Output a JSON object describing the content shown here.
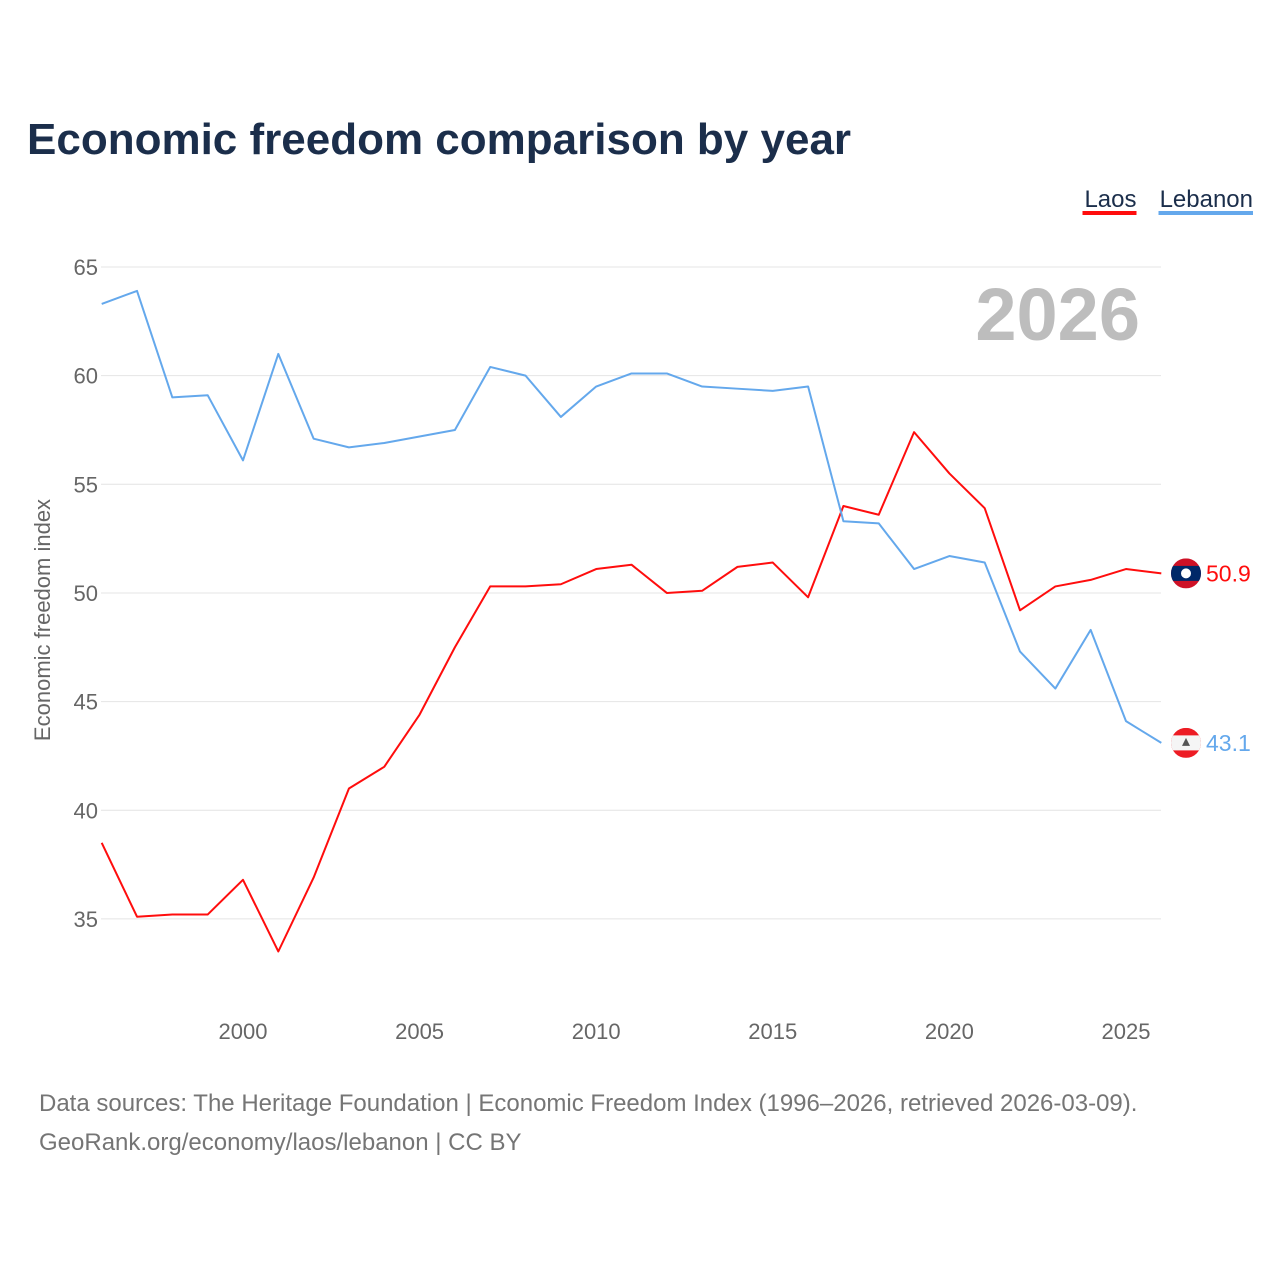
{
  "chart_data": {
    "type": "line",
    "title": "Economic freedom comparison by year",
    "ylabel": "Economic freedom index",
    "xlabel": "",
    "watermark_year": "2026",
    "ylim": [
      30.8,
      66.2
    ],
    "xlim": [
      1996,
      2026
    ],
    "y_ticks": [
      35,
      40,
      45,
      50,
      55,
      60,
      65
    ],
    "x_ticks": [
      2000,
      2005,
      2010,
      2015,
      2020,
      2025
    ],
    "grid": true,
    "legend_position": "top-right",
    "x": [
      1996,
      1997,
      1998,
      1999,
      2000,
      2001,
      2002,
      2003,
      2004,
      2005,
      2006,
      2007,
      2008,
      2009,
      2010,
      2011,
      2012,
      2013,
      2014,
      2015,
      2016,
      2017,
      2018,
      2019,
      2020,
      2021,
      2022,
      2023,
      2024,
      2025,
      2026
    ],
    "series": [
      {
        "name": "Laos",
        "color": "#ff0d0d",
        "end_label": "50.9",
        "values": [
          38.5,
          35.1,
          35.2,
          35.2,
          36.8,
          33.5,
          36.9,
          41.0,
          42.0,
          44.4,
          47.5,
          50.3,
          50.3,
          50.4,
          51.1,
          51.3,
          50.0,
          50.1,
          51.2,
          51.4,
          49.8,
          54.0,
          53.6,
          57.4,
          55.5,
          53.9,
          49.2,
          50.3,
          50.6,
          51.1,
          50.9
        ]
      },
      {
        "name": "Lebanon",
        "color": "#64a8ec",
        "end_label": "43.1",
        "values": [
          63.3,
          63.9,
          59.0,
          59.1,
          56.1,
          61.0,
          57.1,
          56.7,
          56.9,
          57.2,
          57.5,
          60.4,
          60.0,
          58.1,
          59.5,
          60.1,
          60.1,
          59.5,
          59.4,
          59.3,
          59.5,
          53.3,
          53.2,
          51.1,
          51.7,
          51.4,
          47.3,
          45.6,
          48.3,
          44.1,
          43.1
        ]
      }
    ]
  },
  "footer": {
    "line1": "Data sources: The Heritage Foundation | Economic Freedom Index (1996–2026, retrieved 2026-03-09).",
    "line2": "GeoRank.org/economy/laos/lebanon | CC BY"
  }
}
